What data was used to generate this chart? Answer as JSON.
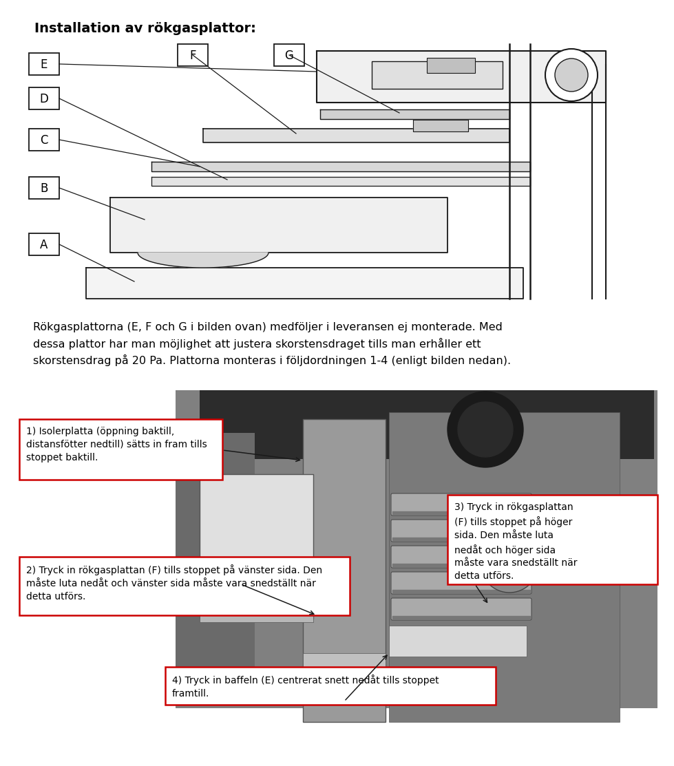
{
  "title": "Installation av rökgasplattor:",
  "bg_color": "#ffffff",
  "page_width": 9.6,
  "page_height": 10.94,
  "paragraph_text": "Rökgasplattorna (E, F och G i bilden ovan) medföljer i leveransen ej monterade. Med\ndessa plattor har man möjlighet att justera skorstensdraget tills man erhåller ett\nskorstensdrag på 20 Pa. Plattorna monteras i följdordningen 1-4 (enligt bilden nedan).",
  "box1_text": "1) Isolerplatta (öppning baktill,\ndistansfötter nedtill) sätts in fram tills\nstoppet baktill.",
  "box2_text": "2) Tryck in rökgasplattan (F) tills stoppet på vänster sida. Den\nmåste luta nedåt och vänster sida måste vara snedställt när\ndetta utförs.",
  "box3_text": "3) Tryck in rökgasplattan\n(F) tills stoppet på höger\nsida. Den måste luta\nnedåt och höger sida\nmåste vara snedställt när\ndetta utförs.",
  "box4_text": "4) Tryck in baffeln (E) centrerat snett nedåt tills stoppet\nframtill.",
  "labels_left": [
    "E",
    "D",
    "C",
    "B",
    "A"
  ],
  "labels_top": [
    "F",
    "G"
  ]
}
